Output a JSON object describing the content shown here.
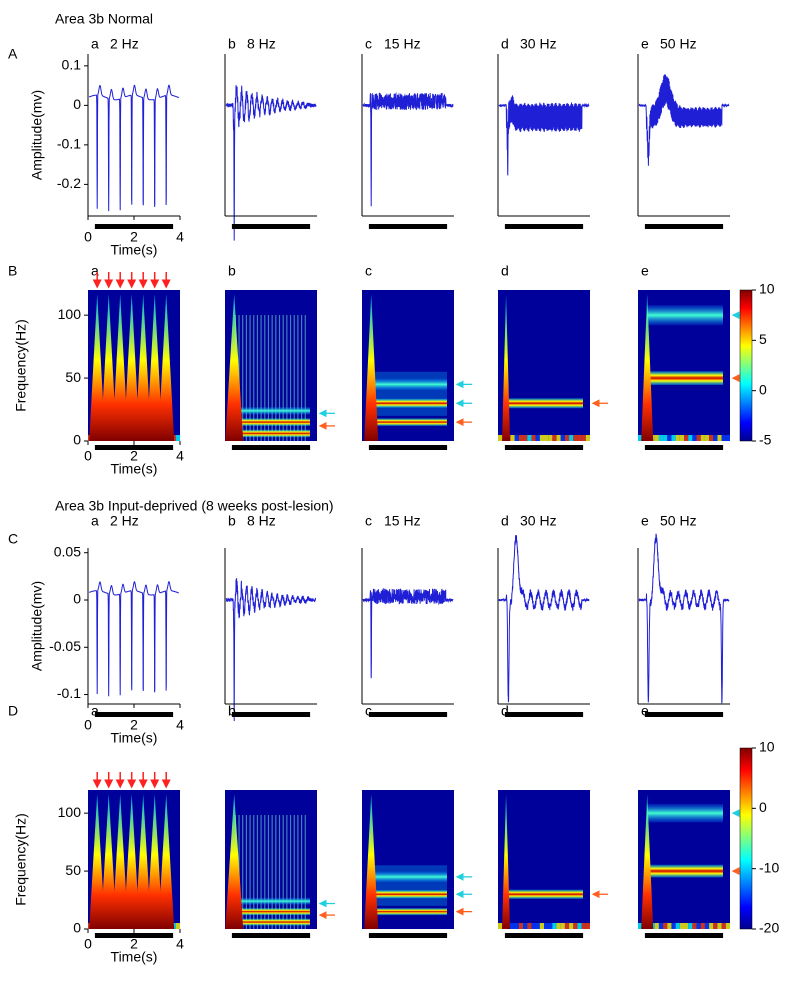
{
  "panels": [
    {
      "letter": "a",
      "frequency": "2 Hz"
    },
    {
      "letter": "b",
      "frequency": "8 Hz"
    },
    {
      "letter": "c",
      "frequency": "15 Hz"
    },
    {
      "letter": "d",
      "frequency": "30 Hz"
    },
    {
      "letter": "e",
      "frequency": "50 Hz"
    }
  ],
  "sections": [
    {
      "title": "Area 3b Normal",
      "rows": [
        {
          "label": "A",
          "type": "waveform",
          "ylabel": "Amplitude(mv)",
          "ylim": [
            -0.28,
            0.13
          ],
          "yticks": [
            0.1,
            0,
            -0.1,
            -0.2
          ],
          "xlabel": "Time(s)",
          "xlim": [
            0,
            4
          ],
          "xticks": [
            0,
            2,
            4
          ]
        },
        {
          "label": "B",
          "type": "spectrogram",
          "ylabel": "Frequency(Hz)",
          "ylim": [
            0,
            120
          ],
          "yticks": [
            0,
            50,
            100
          ],
          "xlabel": "Time(s)",
          "xlim": [
            0,
            4
          ],
          "xticks": [
            0,
            2,
            4
          ],
          "colorbar_lim": [
            -5,
            10
          ],
          "colorbar_ticks": [
            10,
            5,
            0,
            -5
          ]
        }
      ]
    },
    {
      "title": "Area 3b Input-deprived (8 weeks post-lesion)",
      "rows": [
        {
          "label": "C",
          "type": "waveform",
          "ylabel": "Amplitude(mv)",
          "ylim": [
            -0.11,
            0.055
          ],
          "yticks": [
            0.05,
            0,
            -0.05,
            -0.1
          ],
          "xlabel": "Time(s)",
          "xlim": [
            0,
            4
          ],
          "xticks": [
            0,
            2,
            4
          ]
        },
        {
          "label": "D",
          "type": "spectrogram",
          "ylabel": "Frequency(Hz)",
          "ylim": [
            0,
            120
          ],
          "yticks": [
            0,
            50,
            100
          ],
          "xlabel": "Time(s)",
          "xlim": [
            0,
            4
          ],
          "xticks": [
            0,
            2,
            4
          ],
          "colorbar_lim": [
            -20,
            10
          ],
          "colorbar_ticks": [
            10,
            0,
            -10,
            -20
          ]
        }
      ]
    }
  ]
}
